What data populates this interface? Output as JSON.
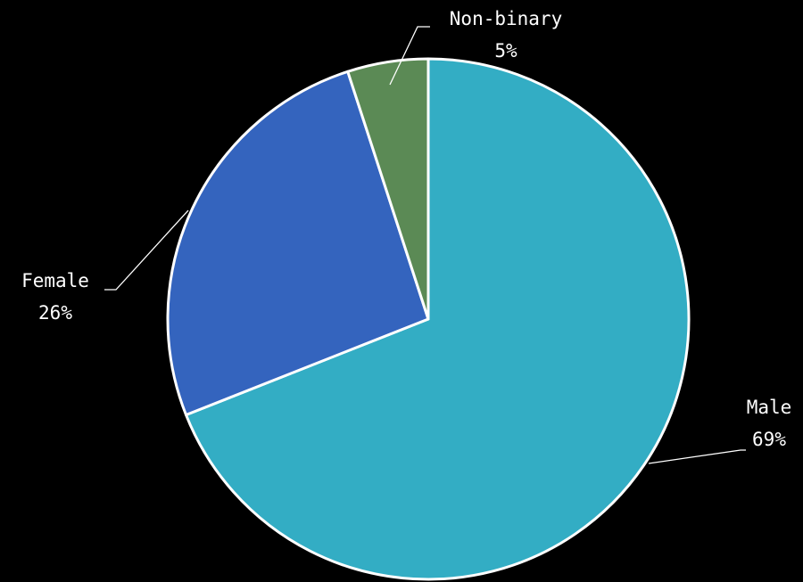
{
  "chart_data": {
    "type": "pie",
    "categories": [
      "Male",
      "Female",
      "Non-binary"
    ],
    "values": [
      69,
      26,
      5
    ],
    "value_labels": [
      "69%",
      "26%",
      "5%"
    ],
    "colors": [
      "#33adc4",
      "#3464be",
      "#5b8a55"
    ]
  }
}
